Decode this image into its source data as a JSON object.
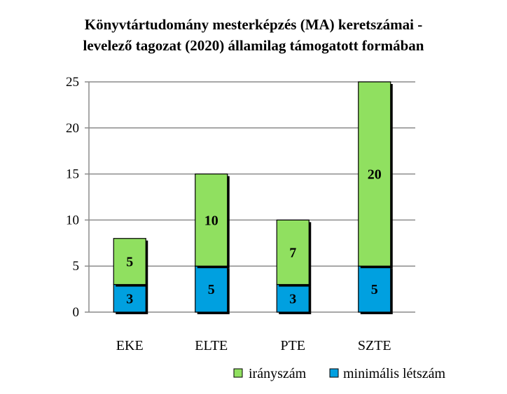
{
  "chart_data": {
    "type": "bar",
    "stacked": true,
    "title_lines": [
      "Könyvtártudomány mesterképzés (MA) keretszámai -",
      "levelező tagozat (2020) államilag támogatott formában"
    ],
    "categories": [
      "EKE",
      "ELTE",
      "PTE",
      "SZTE"
    ],
    "series": [
      {
        "name": "minimális létszám",
        "values": [
          3,
          5,
          3,
          5
        ],
        "color": "#00a0e0"
      },
      {
        "name": "irányszám",
        "values": [
          5,
          10,
          7,
          20
        ],
        "color": "#90e060"
      }
    ],
    "ylim": [
      0,
      25
    ],
    "yticks": [
      0,
      5,
      10,
      15,
      20,
      25
    ],
    "grid": true,
    "legend_position": "bottom-right",
    "legend_order": [
      "irányszám",
      "minimális létszám"
    ]
  }
}
